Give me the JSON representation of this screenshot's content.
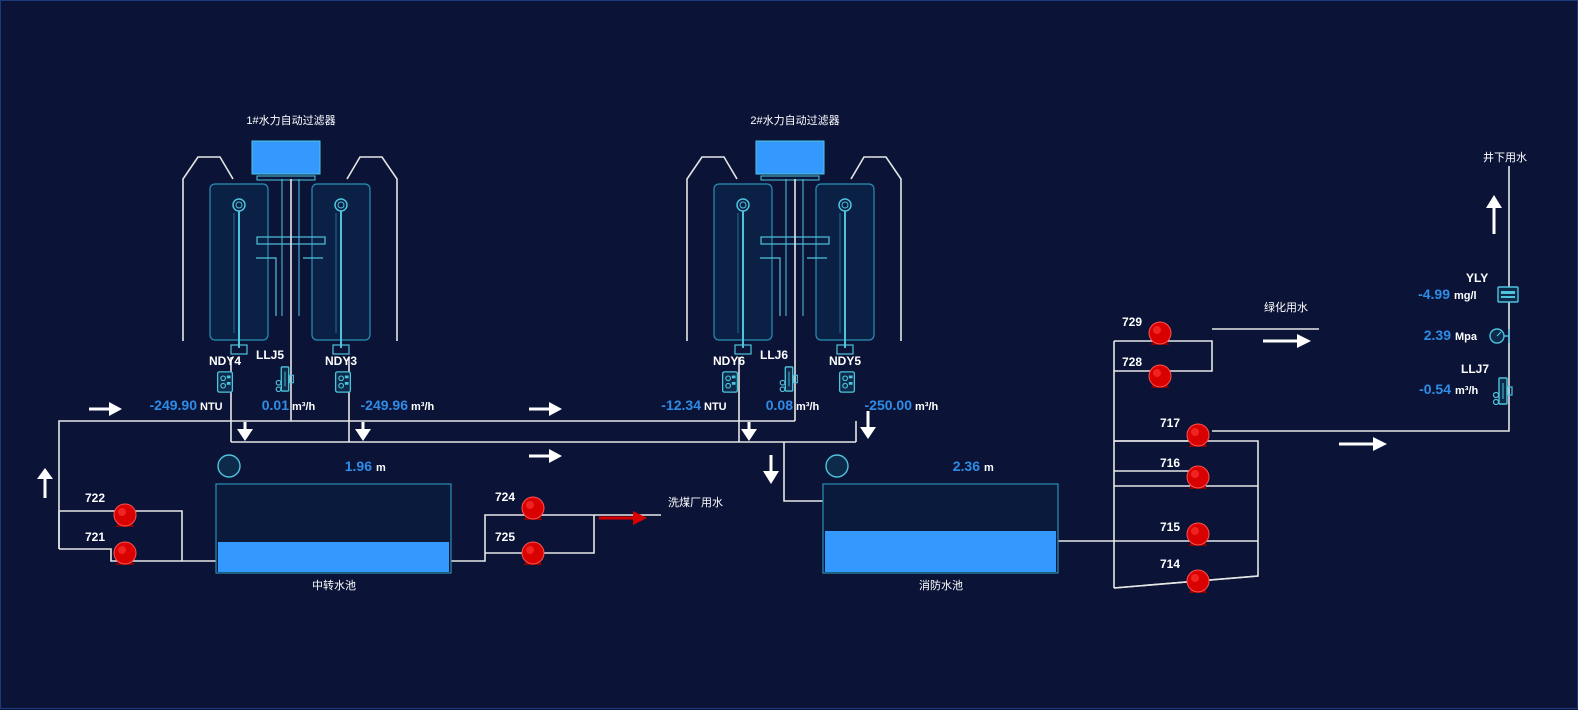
{
  "colors": {
    "background": "#0b1437",
    "pipe": "#e6e6e6",
    "value": "#2f8ce6",
    "water": "#3399ff",
    "pump": "#d90000",
    "outline": "#4fc3dc"
  },
  "filter1": {
    "title": "1#水力自动过滤器"
  },
  "filter2": {
    "title": "2#水力自动过滤器"
  },
  "instruments": {
    "ndy4": {
      "name": "NDY4",
      "value": "-249.90",
      "unit": "NTU"
    },
    "llj5": {
      "name": "LLJ5",
      "value": "0.01",
      "unit": "m³/h"
    },
    "ndy3": {
      "name": "NDY3",
      "value": "-249.96",
      "unit": "m³/h"
    },
    "ndy6": {
      "name": "NDY6",
      "value": "-12.34",
      "unit": "NTU"
    },
    "llj6": {
      "name": "LLJ6",
      "value": "0.08",
      "unit": "m³/h"
    },
    "ndy5": {
      "name": "NDY5",
      "value": "-250.00",
      "unit": "m³/h"
    },
    "yly": {
      "name": "YLY",
      "value": "-4.99",
      "unit": "mg/l"
    },
    "pressure": {
      "value": "2.39",
      "unit": "Mpa"
    },
    "llj7": {
      "name": "LLJ7",
      "value": "-0.54",
      "unit": "m³/h"
    }
  },
  "tanks": {
    "transfer": {
      "name": "中转水池",
      "level": "1.96",
      "unit": "m",
      "fill_fraction": 0.34
    },
    "fire": {
      "name": "消防水池",
      "level": "2.36",
      "unit": "m",
      "fill_fraction": 0.47
    }
  },
  "pumps": {
    "p722": "722",
    "p721": "721",
    "p724": "724",
    "p725": "725",
    "p729": "729",
    "p728": "728",
    "p717": "717",
    "p716": "716",
    "p715": "715",
    "p714": "714"
  },
  "destinations": {
    "wash": "洗煤厂用水",
    "green": "绿化用水",
    "underground": "井下用水"
  }
}
